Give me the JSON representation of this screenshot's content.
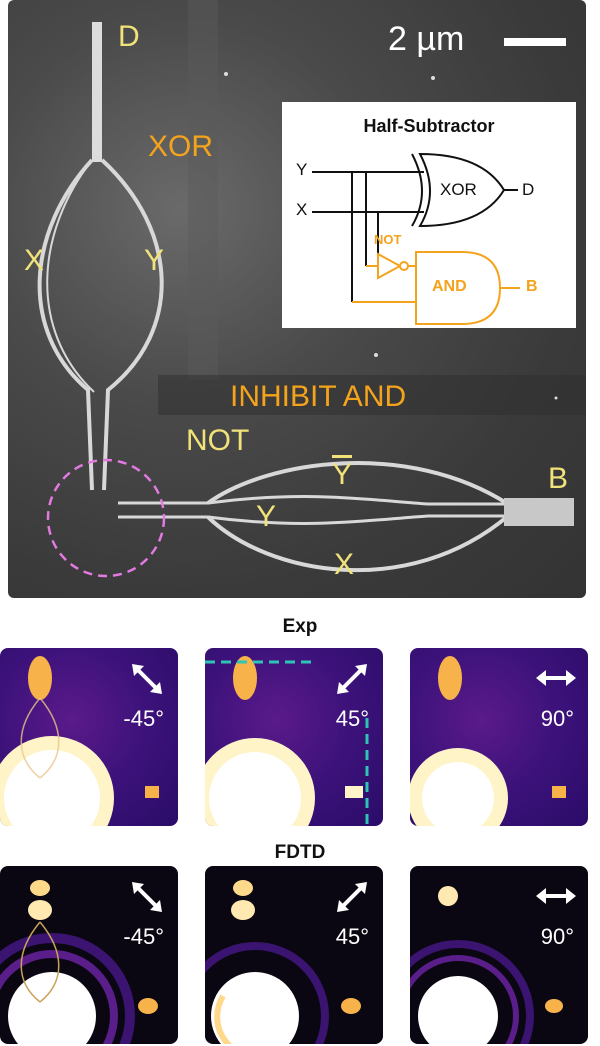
{
  "sem_image": {
    "scale_label": "2 µm",
    "labels": {
      "d": "D",
      "xor": "XOR",
      "x_top": "X",
      "y_top": "Y",
      "inhibit_and": "INHIBIT AND",
      "not": "NOT",
      "y_bar": "Y",
      "y_bottom": "Y",
      "x_bottom": "X",
      "b": "B"
    },
    "inset": {
      "title": "Half-Subtractor",
      "input_y": "Y",
      "input_x": "X",
      "xor_gate": "XOR",
      "output_d": "D",
      "not_label": "NOT",
      "and_gate": "AND",
      "output_b": "B"
    }
  },
  "exp_section": {
    "title": "Exp",
    "panels": [
      {
        "angle": "-45°"
      },
      {
        "angle": "45°"
      },
      {
        "angle": "90°"
      }
    ]
  },
  "fdtd_section": {
    "title": "FDTD",
    "panels": [
      {
        "angle": "-45°"
      },
      {
        "angle": "45°"
      },
      {
        "angle": "90°"
      }
    ]
  },
  "colors": {
    "label_yellow": "#f2e27a",
    "label_orange": "#f4a31c",
    "circle_magenta": "#e27ae0",
    "dash_cyan": "#2ec4b6"
  }
}
